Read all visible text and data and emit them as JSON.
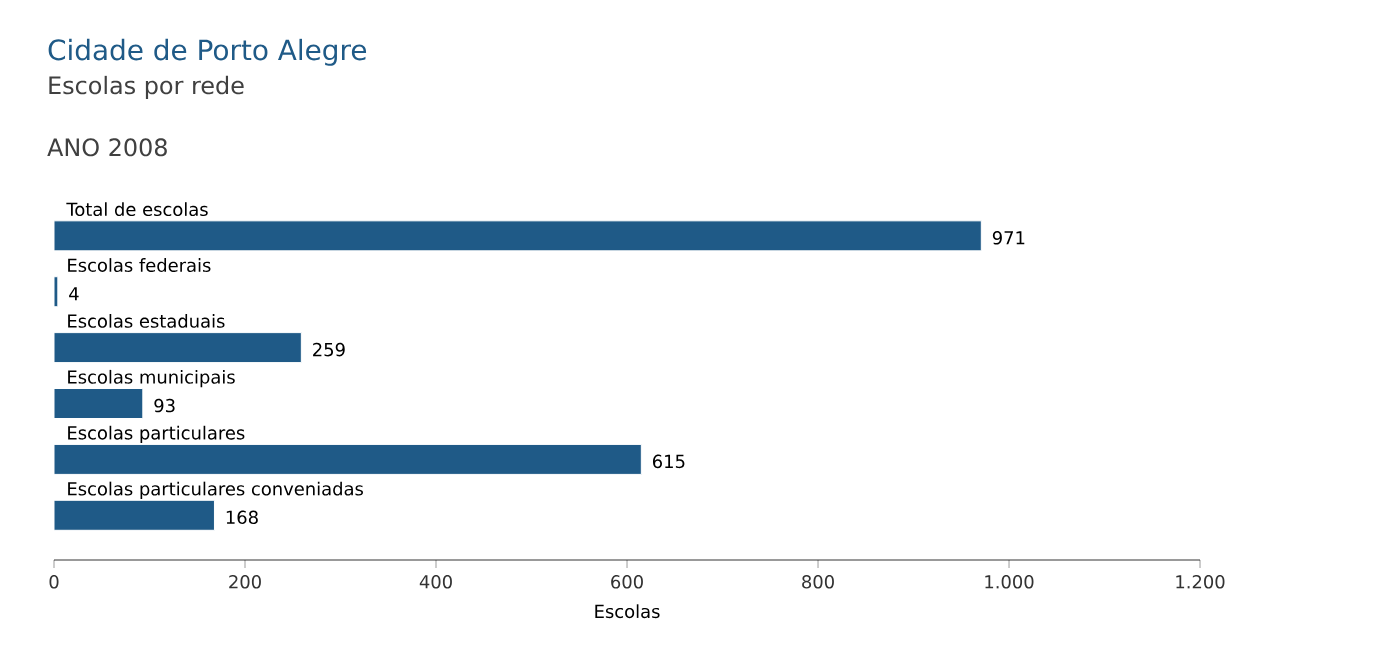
{
  "chart_data": {
    "type": "bar",
    "orientation": "horizontal",
    "title": "Cidade de Porto Alegre",
    "subtitle": "Escolas por rede",
    "annotations": [
      "ANO 2008"
    ],
    "categories": [
      "Total de escolas",
      "Escolas federais",
      "Escolas estaduais",
      "Escolas municipais",
      "Escolas particulares",
      "Escolas particulares conveniadas"
    ],
    "values": [
      971,
      4,
      259,
      93,
      615,
      168
    ],
    "value_labels": [
      "971",
      "4",
      "259",
      "93",
      "615",
      "168"
    ],
    "color": "#1f5a87",
    "xlabel": "Escolas",
    "xlim": [
      0,
      1200
    ],
    "xticks": [
      0,
      200,
      400,
      600,
      800,
      {
        "value": 1000,
        "label": "1.000"
      },
      {
        "value": 1200,
        "label": "1.200"
      }
    ],
    "grid": false
  }
}
